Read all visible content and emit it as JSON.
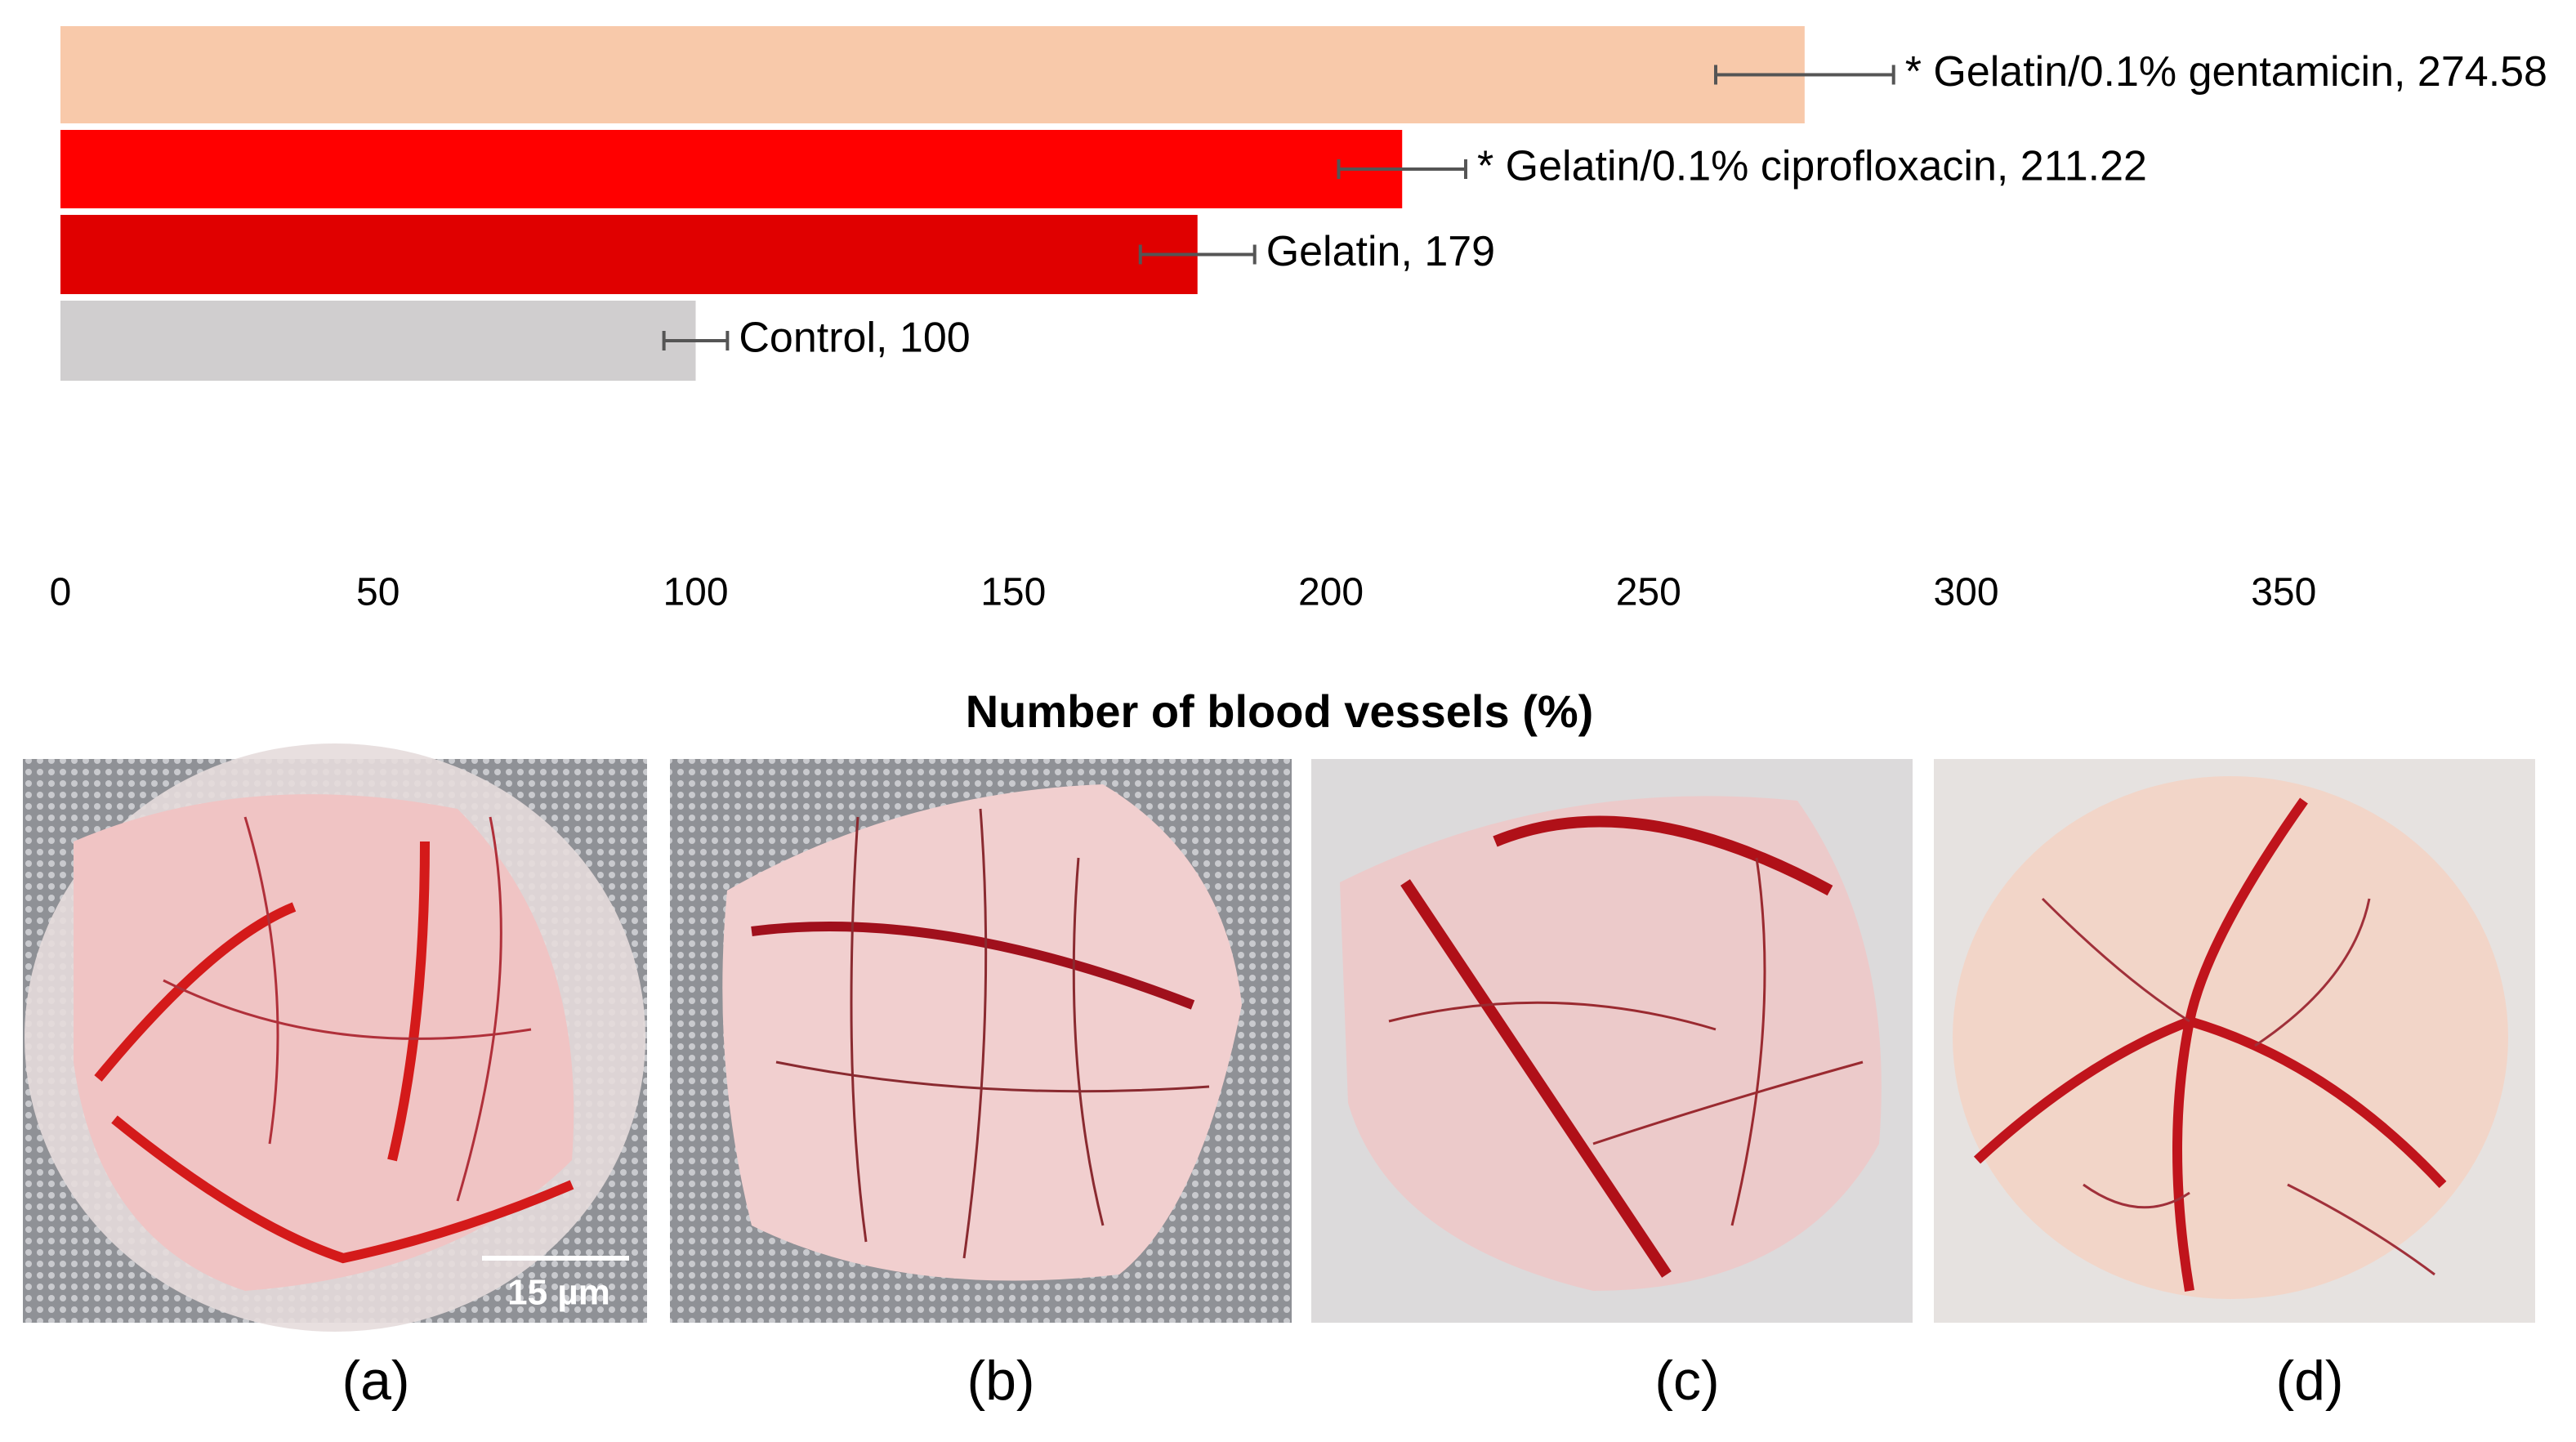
{
  "chart_data": {
    "type": "hbar",
    "x_label": "Number of blood vessels (%)",
    "values": [
      274.58,
      211.22,
      179,
      100
    ],
    "errors": [
      14,
      10,
      9,
      5
    ],
    "value_labels": [
      "* Gelatin/0.1% gentamicin, 274.58",
      "* Gelatin/0.1% ciprofloxacin, 211.22",
      "Gelatin, 179",
      "Control, 100"
    ],
    "colors": [
      "#f8c9aa",
      "#ff0000",
      "#e00000",
      "#d0cecf"
    ],
    "xlim": [
      0,
      400
    ],
    "xticks": [
      0,
      50,
      100,
      150,
      200,
      250,
      300,
      350
    ]
  },
  "photos": {
    "panels": [
      "(a)",
      "(b)",
      "(c)",
      "(d)"
    ],
    "scale_bar": "15 µm"
  }
}
